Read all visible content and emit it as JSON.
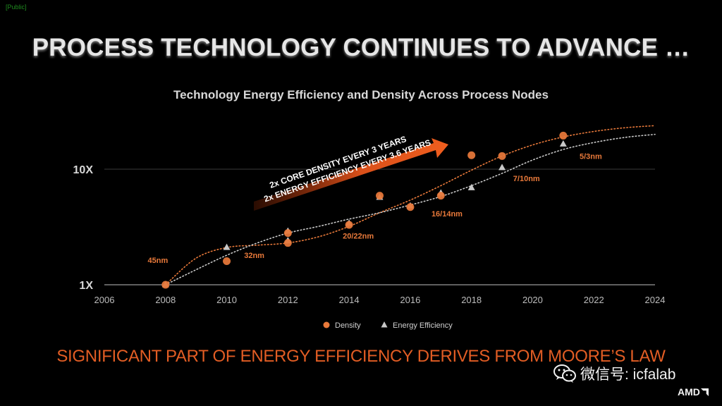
{
  "public_tag": "[Public]",
  "slide_title": "PROCESS TECHNOLOGY CONTINUES TO ADVANCE …",
  "footer_text": "SIGNIFICANT PART OF ENERGY EFFICIENCY DERIVES FROM MOORE’S LAW",
  "watermark": {
    "label": "微信号: icfalab",
    "icon": "wechat-icon"
  },
  "brand": {
    "name": "AMD",
    "icon": "amd-arrow-icon"
  },
  "colors": {
    "density": "#e8793a",
    "efficiency": "#c8c8c8",
    "arrow": "#e5571b",
    "footer": "#e25d24",
    "background": "#000000"
  },
  "chart_data": {
    "type": "scatter",
    "title": "Technology Energy Efficiency and Density Across Process Nodes",
    "xlabel": "",
    "ylabel": "",
    "xlim": [
      2006,
      2024
    ],
    "ylim": [
      1,
      25
    ],
    "yscale": "log",
    "x_ticks": [
      "2006",
      "2008",
      "2010",
      "2012",
      "2014",
      "2016",
      "2018",
      "2020",
      "2022",
      "2024"
    ],
    "y_ticks": [
      {
        "value": 1,
        "label": "1X"
      },
      {
        "value": 10,
        "label": "10X"
      }
    ],
    "series": [
      {
        "name": "Density",
        "marker": "circle",
        "points": [
          [
            2008,
            1.0
          ],
          [
            2010,
            1.6
          ],
          [
            2012,
            2.3
          ],
          [
            2012,
            2.8
          ],
          [
            2014,
            3.3
          ],
          [
            2015,
            5.9
          ],
          [
            2016,
            4.7
          ],
          [
            2017,
            5.9
          ],
          [
            2018,
            13.2
          ],
          [
            2019,
            13.0
          ],
          [
            2021,
            19.5
          ]
        ],
        "trend": [
          [
            2008,
            1.0
          ],
          [
            2009,
            1.7
          ],
          [
            2010,
            2.1
          ],
          [
            2011,
            2.2
          ],
          [
            2012,
            2.3
          ],
          [
            2013,
            2.6
          ],
          [
            2014,
            3.2
          ],
          [
            2015,
            4.2
          ],
          [
            2016,
            5.4
          ],
          [
            2017,
            7.2
          ],
          [
            2018,
            9.8
          ],
          [
            2019,
            13.0
          ],
          [
            2020,
            16.2
          ],
          [
            2021,
            19.0
          ],
          [
            2022,
            21.2
          ],
          [
            2023,
            22.8
          ],
          [
            2024,
            23.8
          ]
        ]
      },
      {
        "name": "Energy Efficiency",
        "marker": "triangle",
        "points": [
          [
            2008,
            1.0
          ],
          [
            2010,
            2.1
          ],
          [
            2012,
            2.4
          ],
          [
            2012,
            2.9
          ],
          [
            2014,
            3.4
          ],
          [
            2015,
            5.7
          ],
          [
            2016,
            4.8
          ],
          [
            2017,
            6.2
          ],
          [
            2018,
            6.9
          ],
          [
            2019,
            10.3
          ],
          [
            2021,
            16.5
          ]
        ],
        "trend": [
          [
            2008,
            1.0
          ],
          [
            2009,
            1.35
          ],
          [
            2010,
            1.8
          ],
          [
            2011,
            2.3
          ],
          [
            2012,
            2.8
          ],
          [
            2013,
            3.2
          ],
          [
            2014,
            3.7
          ],
          [
            2015,
            4.2
          ],
          [
            2016,
            4.9
          ],
          [
            2017,
            5.8
          ],
          [
            2018,
            7.2
          ],
          [
            2019,
            9.2
          ],
          [
            2020,
            12.0
          ],
          [
            2021,
            14.8
          ],
          [
            2022,
            17.0
          ],
          [
            2023,
            18.8
          ],
          [
            2024,
            20.0
          ]
        ]
      }
    ],
    "node_labels": [
      {
        "text": "45nm",
        "x": 2007.75,
        "y": 1.55
      },
      {
        "text": "32nm",
        "x": 2010.9,
        "y": 1.7
      },
      {
        "text": "20/22nm",
        "x": 2014.3,
        "y": 2.5
      },
      {
        "text": "16/14nm",
        "x": 2017.2,
        "y": 3.9
      },
      {
        "text": "7/10nm",
        "x": 2019.8,
        "y": 7.9
      },
      {
        "text": "5/3nm",
        "x": 2021.9,
        "y": 12.3
      }
    ],
    "arrow_annotation": {
      "line1": "2x CORE DENSITY EVERY 3 YEARS",
      "line2": "2x ENERGY EFFICIENCY EVERY 3.6 YEARS"
    },
    "legend": {
      "position": "bottom-center",
      "entries": [
        "Density",
        "Energy Efficiency"
      ]
    },
    "grid": "major y lines at 1X and 10X"
  }
}
